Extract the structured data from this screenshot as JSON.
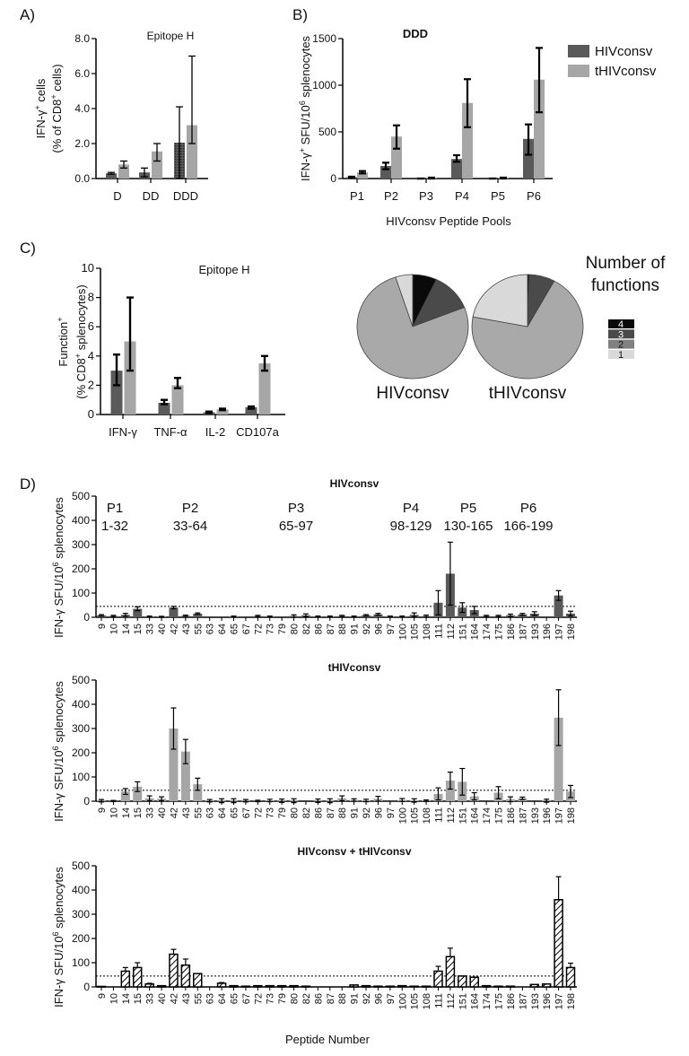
{
  "panel_labels": [
    "A)",
    "B)",
    "C)",
    "D)"
  ],
  "colors": {
    "HIVconsv": "#5a5a5a",
    "tHIVconsv": "#a6a6a6",
    "combined_fill": "#ffffff",
    "combined_hatch": "#000000"
  },
  "chart_data": [
    {
      "type": "bar",
      "title": "Epitope H",
      "ylabel": [
        [
          [
            "IFN-γ",
            ""
          ],
          [
            "+",
            "sup"
          ],
          [
            " cells",
            ""
          ]
        ],
        [
          [
            "(% of CD8",
            ""
          ],
          [
            "+",
            "sup"
          ],
          [
            " cells)",
            ""
          ]
        ]
      ],
      "xlabel": "",
      "ylim": [
        0,
        8
      ],
      "yticks": [
        "0.0",
        "2.0",
        "4.0",
        "6.0",
        "8.0"
      ],
      "categories": [
        "D",
        "DD",
        "DDD"
      ],
      "series": [
        {
          "values": [
            0.3,
            0.35,
            2.05
          ],
          "error_low": [
            0.25,
            0.1,
            0.0
          ],
          "error_high": [
            0.35,
            0.6,
            4.1
          ]
        },
        {
          "values": [
            0.8,
            1.55,
            3.05
          ],
          "error_low": [
            0.6,
            1.0,
            2.0
          ],
          "error_high": [
            1.0,
            2.0,
            7.0
          ]
        }
      ]
    },
    {
      "type": "bar",
      "title": "DDD",
      "ylabel": [
        [
          [
            "IFN-γ",
            ""
          ],
          [
            "+",
            "sup"
          ],
          [
            " SFU/10",
            ""
          ],
          [
            "6",
            "sup"
          ],
          [
            " splenocytes",
            ""
          ]
        ]
      ],
      "xlabel": "HIVconsv Peptide Pools",
      "ylim": [
        0,
        1500
      ],
      "yticks": [
        "0",
        "500",
        "1000",
        "1500"
      ],
      "categories": [
        "P1",
        "P2",
        "P3",
        "P4",
        "P5",
        "P6"
      ],
      "legend": "top-right",
      "series": [
        {
          "name": "HIVconsv",
          "values": [
            15,
            135,
            0,
            210,
            0,
            425
          ],
          "error_low": [
            10,
            100,
            0,
            180,
            0,
            255
          ],
          "error_high": [
            20,
            170,
            0,
            250,
            0,
            580
          ]
        },
        {
          "name": "tHIVconsv",
          "values": [
            65,
            450,
            5,
            810,
            5,
            1060
          ],
          "error_low": [
            55,
            320,
            0,
            550,
            0,
            710
          ],
          "error_high": [
            80,
            570,
            10,
            1065,
            10,
            1400
          ]
        }
      ]
    },
    {
      "type": "bar",
      "title": "Epitope H",
      "ylabel": [
        [
          [
            "Function",
            ""
          ],
          [
            "+",
            "sup"
          ]
        ],
        [
          [
            "(% CD8",
            ""
          ],
          [
            "+",
            "sup"
          ],
          [
            " splenocytes)",
            ""
          ]
        ]
      ],
      "xlabel": "",
      "ylim": [
        0,
        10
      ],
      "yticks": [
        "0",
        "2",
        "4",
        "6",
        "8",
        "10"
      ],
      "categories": [
        "IFN-γ",
        "TNF-α",
        "IL-2",
        "CD107a"
      ],
      "series": [
        {
          "values": [
            3.0,
            0.8,
            0.15,
            0.5
          ],
          "error_low": [
            2.0,
            0.7,
            0.1,
            0.4
          ],
          "error_high": [
            4.1,
            1.0,
            0.2,
            0.55
          ]
        },
        {
          "values": [
            5.0,
            2.0,
            0.35,
            3.5
          ],
          "error_low": [
            3.0,
            1.8,
            0.3,
            3.0
          ],
          "error_high": [
            8.0,
            2.5,
            0.4,
            4.0
          ]
        }
      ]
    },
    {
      "type": "pie",
      "legend_title": [
        "Number of",
        "functions"
      ],
      "legend_labels": [
        "4",
        "3",
        "2",
        "1"
      ],
      "slice_colors": [
        "#0a0a0a",
        "#4a4a4a",
        "#a9a9a9",
        "#d9d9d9"
      ],
      "legend_colors": [
        "#0a0a0a",
        "#4a4a4a",
        "#808080",
        "#d9d9d9"
      ],
      "pies": [
        {
          "label": "HIVconsv",
          "values": [
            7,
            12,
            76,
            5
          ]
        },
        {
          "label": "tHIVconsv",
          "values": [
            0.5,
            7.5,
            70,
            22
          ]
        }
      ]
    },
    {
      "type": "bar",
      "title": "HIVconsv",
      "ylabel": [
        [
          [
            "IFN-γ SFU/10",
            ""
          ],
          [
            "6",
            "sup"
          ],
          [
            " splenocytes",
            ""
          ]
        ]
      ],
      "ylim": [
        0,
        500
      ],
      "yticks": [
        "0",
        "100",
        "200",
        "300",
        "400",
        "500"
      ],
      "threshold": 45,
      "pools": [
        {
          "name": "P1",
          "range": "1-32"
        },
        {
          "name": "P2",
          "range": "33-64"
        },
        {
          "name": "P3",
          "range": "65-97"
        },
        {
          "name": "P4",
          "range": "98-129"
        },
        {
          "name": "P5",
          "range": "130-165"
        },
        {
          "name": "P6",
          "range": "166-199"
        }
      ],
      "categories": [
        "9",
        "10",
        "14",
        "15",
        "33",
        "40",
        "42",
        "43",
        "55",
        "63",
        "64",
        "65",
        "67",
        "72",
        "73",
        "79",
        "80",
        "82",
        "86",
        "87",
        "88",
        "91",
        "92",
        "96",
        "97",
        "100",
        "105",
        "108",
        "111",
        "112",
        "151",
        "164",
        "174",
        "175",
        "186",
        "187",
        "193",
        "196",
        "197",
        "198"
      ],
      "series": [
        {
          "values": [
            8,
            5,
            10,
            35,
            3,
            2,
            40,
            6,
            15,
            0,
            0,
            3,
            0,
            5,
            3,
            0,
            5,
            8,
            3,
            3,
            5,
            3,
            8,
            12,
            3,
            3,
            10,
            5,
            60,
            180,
            40,
            30,
            5,
            5,
            8,
            12,
            15,
            0,
            90,
            15
          ],
          "error": [
            3,
            3,
            6,
            8,
            2,
            2,
            5,
            3,
            3,
            0,
            0,
            2,
            0,
            3,
            2,
            0,
            5,
            6,
            2,
            2,
            3,
            2,
            3,
            4,
            2,
            2,
            8,
            4,
            50,
            130,
            20,
            15,
            3,
            3,
            5,
            4,
            8,
            0,
            20,
            10
          ]
        }
      ]
    },
    {
      "type": "bar",
      "title": "tHIVconsv",
      "ylabel": [
        [
          [
            "IFN-γ SFU/10",
            ""
          ],
          [
            "6",
            "sup"
          ],
          [
            " splenocytes",
            ""
          ]
        ]
      ],
      "ylim": [
        0,
        500
      ],
      "yticks": [
        "0",
        "100",
        "200",
        "300",
        "400",
        "500"
      ],
      "threshold": 45,
      "categories": [
        "9",
        "10",
        "14",
        "15",
        "33",
        "40",
        "42",
        "43",
        "55",
        "63",
        "64",
        "65",
        "67",
        "72",
        "73",
        "79",
        "80",
        "82",
        "86",
        "87",
        "88",
        "91",
        "92",
        "96",
        "97",
        "100",
        "105",
        "108",
        "111",
        "112",
        "151",
        "164",
        "174",
        "175",
        "186",
        "187",
        "193",
        "196",
        "197",
        "198"
      ],
      "series": [
        {
          "values": [
            2,
            1,
            40,
            60,
            12,
            10,
            300,
            205,
            70,
            2,
            2,
            2,
            2,
            1,
            3,
            2,
            2,
            0,
            2,
            2,
            12,
            5,
            3,
            10,
            0,
            5,
            3,
            2,
            30,
            85,
            80,
            20,
            0,
            35,
            8,
            12,
            0,
            2,
            345,
            40
          ],
          "error": [
            5,
            2,
            12,
            20,
            10,
            8,
            85,
            50,
            25,
            5,
            8,
            8,
            5,
            3,
            5,
            7,
            8,
            0,
            7,
            8,
            10,
            5,
            5,
            10,
            0,
            6,
            7,
            3,
            25,
            35,
            55,
            15,
            0,
            25,
            10,
            5,
            0,
            6,
            115,
            25
          ]
        }
      ]
    },
    {
      "type": "bar",
      "title": "HIVconsv + tHIVconsv",
      "ylabel": [
        [
          [
            "IFN-γ SFU/10",
            ""
          ],
          [
            "6",
            "sup"
          ],
          [
            " splenocytes",
            ""
          ]
        ]
      ],
      "xlabel": "Peptide Number",
      "ylim": [
        0,
        500
      ],
      "yticks": [
        "0",
        "100",
        "200",
        "300",
        "400",
        "500"
      ],
      "threshold": 45,
      "categories": [
        "9",
        "10",
        "14",
        "15",
        "33",
        "40",
        "42",
        "43",
        "55",
        "63",
        "64",
        "65",
        "67",
        "72",
        "73",
        "79",
        "80",
        "82",
        "86",
        "87",
        "88",
        "91",
        "92",
        "96",
        "97",
        "100",
        "105",
        "108",
        "111",
        "112",
        "151",
        "164",
        "174",
        "175",
        "186",
        "187",
        "193",
        "196",
        "197",
        "198"
      ],
      "series": [
        {
          "values": [
            2,
            0,
            65,
            80,
            12,
            5,
            135,
            90,
            55,
            0,
            15,
            5,
            3,
            5,
            5,
            5,
            5,
            3,
            0,
            0,
            0,
            8,
            5,
            3,
            3,
            5,
            3,
            3,
            65,
            125,
            45,
            40,
            5,
            3,
            3,
            0,
            10,
            12,
            360,
            80
          ],
          "error": [
            0,
            0,
            15,
            20,
            3,
            0,
            20,
            25,
            0,
            0,
            3,
            0,
            0,
            0,
            0,
            0,
            0,
            0,
            0,
            0,
            0,
            0,
            0,
            0,
            0,
            0,
            0,
            0,
            20,
            35,
            0,
            0,
            0,
            0,
            0,
            0,
            0,
            0,
            95,
            18
          ]
        }
      ]
    }
  ]
}
